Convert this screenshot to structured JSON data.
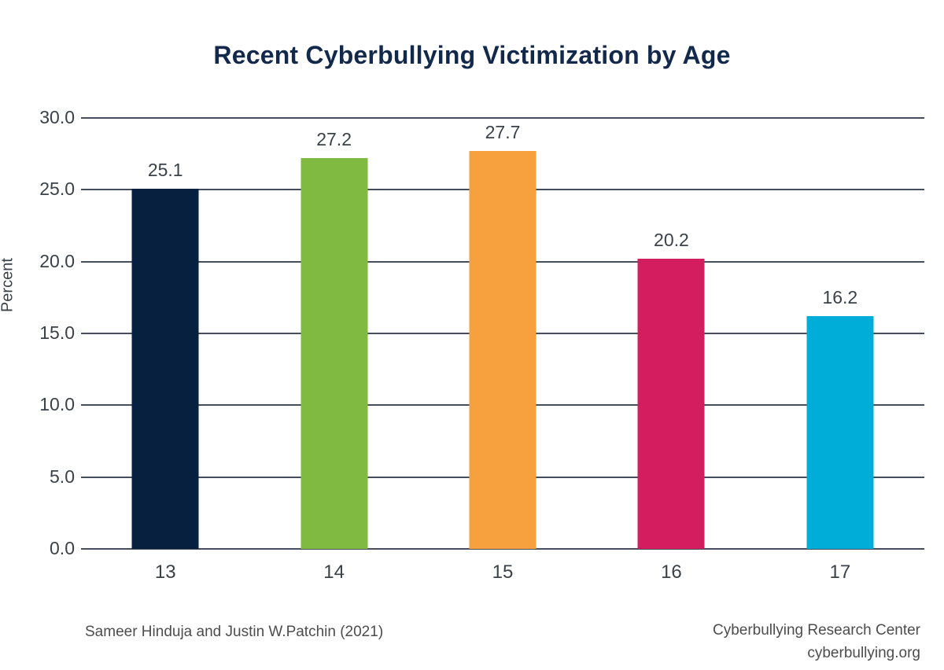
{
  "chart_data": {
    "type": "bar",
    "title": "Recent Cyberbullying Victimization by Age",
    "categories": [
      "13",
      "14",
      "15",
      "16",
      "17"
    ],
    "values": [
      25.1,
      27.2,
      27.7,
      20.2,
      16.2
    ],
    "value_labels": [
      "25.1",
      "27.2",
      "27.7",
      "20.2",
      "16.2"
    ],
    "bar_colors": [
      "#07203f",
      "#81ba41",
      "#f7a03e",
      "#d31d5e",
      "#00add8"
    ],
    "xlabel": "",
    "ylabel": "Percent",
    "ylim": [
      0,
      30
    ],
    "ytick_values": [
      0,
      5,
      10,
      15,
      20,
      25,
      30
    ],
    "ytick_labels": [
      "0.0",
      "5.0",
      "10.0",
      "15.0",
      "20.0",
      "25.0",
      "30.0"
    ],
    "grid": true,
    "legend_position": "none"
  },
  "footer": {
    "source_left": "Sameer Hinduja and Justin W.Patchin (2021)",
    "source_right_line1": "Cyberbullying Research Center",
    "source_right_line2": "cyberbullying.org"
  },
  "colors": {
    "background": "#ffffff",
    "title_text": "#13294b",
    "grid_line": "#454e5c",
    "tick_text": "#3a4148",
    "value_label_text": "#3a4148",
    "footer_text": "#4d4d4d"
  }
}
